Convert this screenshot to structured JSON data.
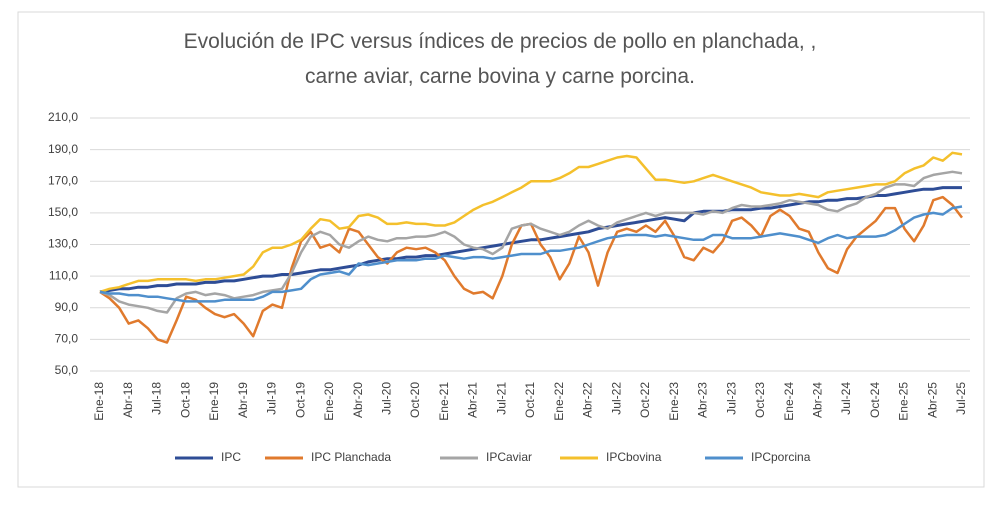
{
  "chart_data": {
    "type": "line",
    "title": [
      "Evolución de IPC versus índices de precios de pollo en planchada, ,",
      "carne aviar, carne bovina y carne porcina."
    ],
    "categories": [
      "Ene-18",
      null,
      null,
      "Abr-18",
      null,
      null,
      "Jul-18",
      null,
      null,
      "Oct-18",
      null,
      null,
      "Ene-19",
      null,
      null,
      "Abr-19",
      null,
      null,
      "Jul-19",
      null,
      null,
      "Oct-19",
      null,
      null,
      "Ene-20",
      null,
      null,
      "Abr-20",
      null,
      null,
      "Jul-20",
      null,
      null,
      "Oct-20",
      null,
      null,
      "Ene-21",
      null,
      null,
      "Abr-21",
      null,
      null,
      "Jul-21",
      null,
      null,
      "Oct-21",
      null,
      null,
      "Ene-22",
      null,
      null,
      "Abr-22",
      null,
      null,
      "Jul-22",
      null,
      null,
      "Oct-22",
      null,
      null,
      "Ene-23",
      null,
      null,
      "Abr-23",
      null,
      null,
      "Jul-23",
      null,
      null,
      "Oct-23",
      null,
      null,
      "Ene-24",
      null,
      null,
      "Abr-24",
      null,
      null,
      "Jul-24",
      null,
      null,
      "Oct-24",
      null,
      null,
      "Ene-25",
      null,
      null,
      "Abr-25",
      null,
      null,
      "Jul-25"
    ],
    "series": [
      {
        "name": "IPC",
        "color": "#2e4d96",
        "values": [
          100,
          101,
          102,
          102,
          103,
          103,
          104,
          104,
          105,
          105,
          105,
          106,
          106,
          107,
          107,
          108,
          109,
          110,
          110,
          111,
          111,
          112,
          113,
          114,
          114,
          115,
          116,
          117,
          119,
          120,
          121,
          121,
          122,
          122,
          123,
          123,
          124,
          125,
          126,
          127,
          128,
          129,
          130,
          131,
          132,
          133,
          133,
          134,
          135,
          136,
          137,
          138,
          140,
          141,
          142,
          143,
          144,
          145,
          146,
          147,
          146,
          145,
          150,
          151,
          151,
          151,
          152,
          152,
          152,
          153,
          153,
          154,
          155,
          156,
          157,
          157,
          158,
          158,
          159,
          159,
          160,
          161,
          161,
          162,
          163,
          164,
          165,
          165,
          166,
          166,
          166
        ]
      },
      {
        "name": "IPC Planchada",
        "color": "#e07a2d",
        "values": [
          100,
          96,
          90,
          80,
          82,
          77,
          70,
          68,
          82,
          97,
          95,
          90,
          86,
          84,
          86,
          80,
          72,
          88,
          92,
          90,
          115,
          132,
          138,
          128,
          130,
          125,
          140,
          138,
          130,
          122,
          118,
          125,
          128,
          127,
          128,
          125,
          120,
          110,
          102,
          99,
          100,
          96,
          110,
          130,
          142,
          143,
          130,
          122,
          108,
          118,
          135,
          125,
          104,
          125,
          138,
          140,
          138,
          142,
          138,
          145,
          135,
          122,
          120,
          128,
          125,
          132,
          145,
          147,
          142,
          135,
          148,
          152,
          148,
          140,
          138,
          125,
          115,
          112,
          127,
          135,
          140,
          145,
          153,
          153,
          140,
          132,
          142,
          158,
          160,
          155,
          147
        ]
      },
      {
        "name": "IPCaviar",
        "color": "#a5a5a5",
        "values": [
          100,
          98,
          94,
          92,
          91,
          90,
          88,
          87,
          96,
          99,
          100,
          98,
          99,
          98,
          96,
          97,
          98,
          100,
          101,
          102,
          112,
          125,
          135,
          138,
          136,
          130,
          128,
          132,
          135,
          133,
          132,
          134,
          134,
          135,
          135,
          136,
          138,
          135,
          130,
          128,
          127,
          124,
          128,
          140,
          142,
          143,
          140,
          138,
          136,
          138,
          142,
          145,
          142,
          140,
          144,
          146,
          148,
          150,
          148,
          150,
          150,
          150,
          150,
          149,
          151,
          150,
          153,
          155,
          154,
          154,
          155,
          156,
          158,
          157,
          156,
          155,
          152,
          151,
          154,
          156,
          160,
          162,
          166,
          168,
          168,
          167,
          172,
          174,
          175,
          176,
          175
        ]
      },
      {
        "name": "IPCbovina",
        "color": "#f4c02c",
        "values": [
          100,
          102,
          103,
          105,
          107,
          107,
          108,
          108,
          108,
          108,
          107,
          108,
          108,
          109,
          110,
          111,
          116,
          125,
          128,
          128,
          130,
          133,
          140,
          146,
          145,
          140,
          141,
          148,
          149,
          147,
          143,
          143,
          144,
          143,
          143,
          142,
          142,
          144,
          148,
          152,
          155,
          157,
          160,
          163,
          166,
          170,
          170,
          170,
          172,
          175,
          179,
          179,
          181,
          183,
          185,
          186,
          185,
          178,
          171,
          171,
          170,
          169,
          170,
          172,
          174,
          172,
          170,
          168,
          166,
          163,
          162,
          161,
          161,
          162,
          161,
          160,
          163,
          164,
          165,
          166,
          167,
          168,
          168,
          170,
          175,
          178,
          180,
          185,
          183,
          188,
          187
        ]
      },
      {
        "name": "IPCporcina",
        "color": "#4f8fcc",
        "values": [
          100,
          99,
          99,
          98,
          98,
          97,
          97,
          96,
          95,
          94,
          94,
          94,
          94,
          95,
          95,
          95,
          95,
          97,
          100,
          100,
          101,
          102,
          108,
          111,
          112,
          113,
          111,
          118,
          117,
          118,
          119,
          120,
          120,
          120,
          121,
          121,
          123,
          122,
          121,
          122,
          122,
          121,
          122,
          123,
          124,
          124,
          124,
          126,
          126,
          127,
          128,
          130,
          132,
          134,
          135,
          136,
          136,
          136,
          135,
          136,
          135,
          134,
          133,
          133,
          136,
          136,
          134,
          134,
          134,
          135,
          136,
          137,
          136,
          135,
          133,
          131,
          134,
          136,
          134,
          135,
          135,
          135,
          136,
          139,
          143,
          147,
          149,
          150,
          149,
          153,
          154
        ]
      }
    ],
    "ylim": [
      50,
      210
    ],
    "yticks": [
      {
        "value": 50,
        "label": "50,0"
      },
      {
        "value": 70,
        "label": "70,0"
      },
      {
        "value": 90,
        "label": "90,0"
      },
      {
        "value": 110,
        "label": "110,0"
      },
      {
        "value": 130,
        "label": "130,0"
      },
      {
        "value": 150,
        "label": "150,0"
      },
      {
        "value": 170,
        "label": "170,0"
      },
      {
        "value": 190,
        "label": "190,0"
      },
      {
        "value": 210,
        "label": "210,0"
      }
    ],
    "grid": true,
    "legend": "bottom"
  }
}
